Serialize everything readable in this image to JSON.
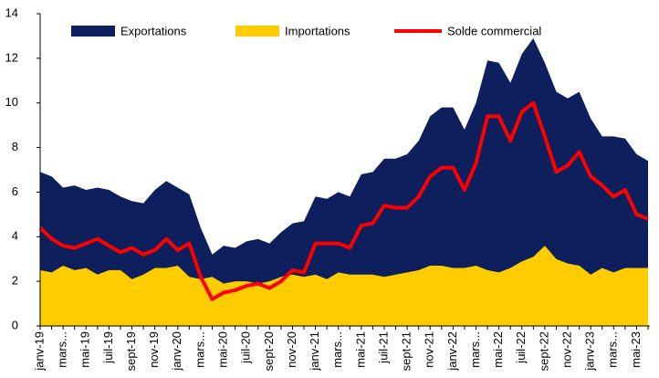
{
  "chart_data": {
    "type": "area-line",
    "categories": [
      "janv-19",
      null,
      "mars...",
      null,
      "mai-19",
      null,
      "juil-19",
      null,
      "sept-19",
      null,
      "nov-19",
      null,
      "janv-20",
      null,
      "mars...",
      null,
      "mai-20",
      null,
      "juil-20",
      null,
      "sept-20",
      null,
      "nov-20",
      null,
      "janv-21",
      null,
      "mars...",
      null,
      "mai-21",
      null,
      "juil-21",
      null,
      "sept-21",
      null,
      "nov-21",
      null,
      "janv-22",
      null,
      "mars...",
      null,
      "mai-22",
      null,
      "juil-22",
      null,
      "sept-22",
      null,
      "nov-22",
      null,
      "janv-23",
      null,
      "mars...",
      null,
      "mai-23",
      null
    ],
    "series": [
      {
        "name": "Exportations",
        "kind": "area",
        "color": "#0d1f5c",
        "values": [
          6.9,
          6.7,
          6.2,
          6.3,
          6.1,
          6.2,
          6.1,
          5.8,
          5.6,
          5.5,
          6.1,
          6.5,
          6.2,
          5.9,
          4.4,
          3.2,
          3.6,
          3.5,
          3.8,
          3.9,
          3.7,
          4.2,
          4.6,
          4.7,
          5.8,
          5.7,
          6.0,
          5.8,
          6.8,
          6.9,
          7.5,
          7.5,
          7.7,
          8.3,
          9.4,
          9.8,
          9.8,
          8.8,
          10.0,
          11.9,
          11.8,
          10.9,
          12.2,
          12.9,
          11.8,
          10.5,
          10.2,
          10.5,
          9.3,
          8.5,
          8.5,
          8.4,
          7.7,
          7.4
        ]
      },
      {
        "name": "Importations",
        "kind": "area",
        "color": "#ffcc00",
        "values": [
          2.5,
          2.4,
          2.7,
          2.5,
          2.6,
          2.3,
          2.5,
          2.5,
          2.1,
          2.3,
          2.6,
          2.6,
          2.7,
          2.2,
          2.1,
          2.2,
          1.9,
          2.0,
          2.0,
          1.9,
          2.0,
          2.2,
          2.3,
          2.2,
          2.3,
          2.1,
          2.4,
          2.3,
          2.3,
          2.3,
          2.2,
          2.3,
          2.4,
          2.5,
          2.7,
          2.7,
          2.6,
          2.6,
          2.7,
          2.5,
          2.4,
          2.6,
          2.9,
          3.1,
          3.6,
          3.0,
          2.8,
          2.7,
          2.3,
          2.6,
          2.4,
          2.6,
          2.6,
          2.6
        ]
      },
      {
        "name": "Solde commercial",
        "kind": "line",
        "color": "#ff0000",
        "values": [
          4.4,
          3.9,
          3.6,
          3.5,
          3.7,
          3.9,
          3.6,
          3.3,
          3.5,
          3.2,
          3.4,
          3.9,
          3.4,
          3.7,
          2.2,
          1.2,
          1.5,
          1.6,
          1.8,
          1.9,
          1.7,
          2.0,
          2.5,
          2.4,
          3.7,
          3.7,
          3.7,
          3.5,
          4.5,
          4.6,
          5.4,
          5.3,
          5.3,
          5.8,
          6.7,
          7.1,
          7.1,
          6.1,
          7.3,
          9.4,
          9.4,
          8.3,
          9.6,
          10.0,
          8.5,
          6.9,
          7.2,
          7.8,
          6.7,
          6.3,
          5.8,
          6.1,
          5.0,
          4.8
        ]
      }
    ],
    "ylim": [
      0,
      14
    ],
    "yticks": [
      0,
      2,
      4,
      6,
      8,
      10,
      12,
      14
    ],
    "legend": "top",
    "grid": false
  }
}
